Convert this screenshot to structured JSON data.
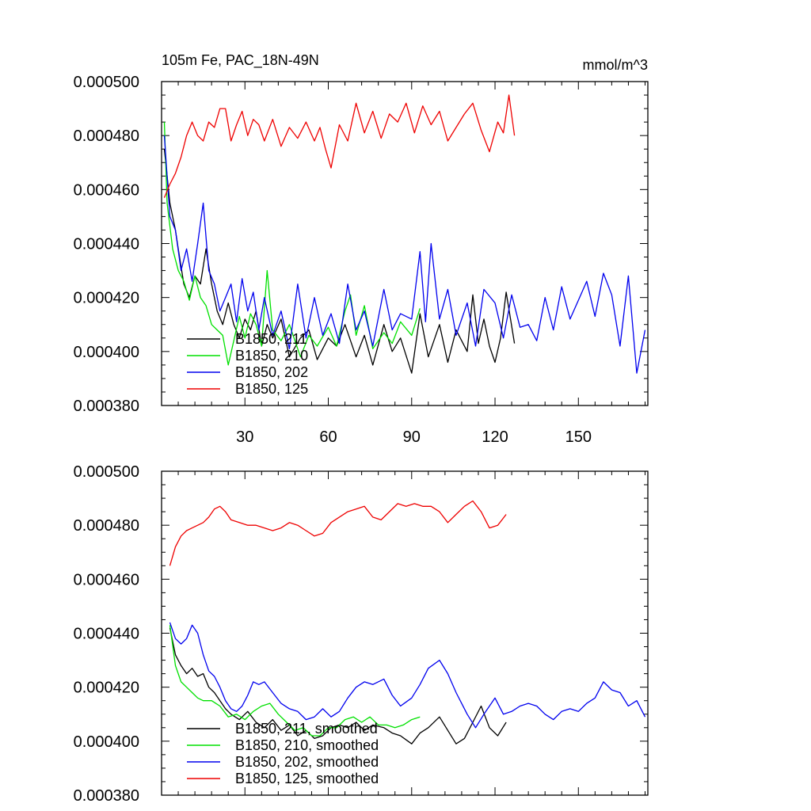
{
  "chart_data": [
    {
      "type": "line",
      "title": "105m Fe, PAC_18N-49N",
      "units": "mmol/m^3",
      "xlim": [
        0,
        175
      ],
      "ylim": [
        0.00038,
        0.0005
      ],
      "xticks": [
        30,
        60,
        90,
        120,
        150
      ],
      "xtick_labels": [
        "30",
        "60",
        "90",
        "120",
        "150"
      ],
      "yticks": [
        0.00038,
        0.0004,
        0.00042,
        0.00044,
        0.00046,
        0.00048,
        0.0005
      ],
      "ytick_labels": [
        "0.000380",
        "0.000400",
        "0.000420",
        "0.000440",
        "0.000460",
        "0.000480",
        "0.000500"
      ],
      "legend_position": "lower-left",
      "series": [
        {
          "name": "B1850, 211",
          "color": "#000000",
          "x": [
            1,
            3,
            5,
            6,
            8,
            10,
            12,
            14,
            16,
            18,
            20,
            22,
            24,
            26,
            28,
            30,
            32,
            34,
            36,
            38,
            40,
            43,
            46,
            50,
            53,
            56,
            60,
            63,
            66,
            70,
            73,
            76,
            80,
            83,
            86,
            90,
            93,
            96,
            100,
            103,
            106,
            110,
            112,
            114,
            116,
            118,
            120,
            122,
            124,
            127
          ],
          "y": [
            0.000475,
            0.000455,
            0.000445,
            0.000438,
            0.000425,
            0.00042,
            0.000428,
            0.000425,
            0.000438,
            0.000425,
            0.000415,
            0.00041,
            0.000418,
            0.00041,
            0.000405,
            0.000412,
            0.000408,
            0.000415,
            0.000402,
            0.00041,
            0.000405,
            0.000412,
            0.000398,
            0.000405,
            0.000408,
            0.000397,
            0.000405,
            0.000402,
            0.00041,
            0.000398,
            0.000406,
            0.000395,
            0.00041,
            0.0004,
            0.000405,
            0.000392,
            0.000414,
            0.000398,
            0.00041,
            0.000396,
            0.000408,
            0.0004,
            0.000421,
            0.000403,
            0.000412,
            0.000402,
            0.000396,
            0.000405,
            0.000422,
            0.000403
          ]
        },
        {
          "name": "B1850, 210",
          "color": "#00e000",
          "x": [
            1,
            2,
            4,
            6,
            8,
            10,
            12,
            14,
            16,
            18,
            20,
            22,
            24,
            26,
            28,
            30,
            32,
            34,
            36,
            38,
            40,
            43,
            46,
            50,
            53,
            56,
            60,
            63,
            66,
            68,
            70,
            73,
            76,
            80,
            83,
            86,
            90,
            93
          ],
          "y": [
            0.000485,
            0.000455,
            0.000438,
            0.00043,
            0.000426,
            0.000419,
            0.000428,
            0.00042,
            0.000417,
            0.00041,
            0.000408,
            0.000406,
            0.000395,
            0.000404,
            0.000413,
            0.000405,
            0.000414,
            0.00041,
            0.000402,
            0.00043,
            0.000408,
            0.000404,
            0.00041,
            0.000398,
            0.000406,
            0.000402,
            0.000409,
            0.000402,
            0.000415,
            0.000421,
            0.000406,
            0.000417,
            0.000401,
            0.000407,
            0.000403,
            0.000411,
            0.000406,
            0.000416
          ]
        },
        {
          "name": "B1850, 202",
          "color": "#0000ee",
          "x": [
            1,
            3,
            5,
            7,
            9,
            11,
            13,
            15,
            17,
            19,
            21,
            23,
            25,
            27,
            29,
            31,
            33,
            35,
            37,
            40,
            43,
            46,
            49,
            52,
            55,
            58,
            61,
            64,
            67,
            70,
            73,
            76,
            80,
            83,
            86,
            90,
            93,
            95,
            97,
            100,
            103,
            106,
            110,
            113,
            116,
            120,
            123,
            126,
            129,
            132,
            135,
            138,
            141,
            144,
            147,
            150,
            153,
            156,
            159,
            162,
            165,
            168,
            171,
            174
          ],
          "y": [
            0.00048,
            0.00045,
            0.000445,
            0.00043,
            0.000438,
            0.000426,
            0.00044,
            0.000455,
            0.00043,
            0.000425,
            0.000415,
            0.00042,
            0.000425,
            0.000411,
            0.000427,
            0.000415,
            0.000422,
            0.000408,
            0.00042,
            0.000406,
            0.000415,
            0.000401,
            0.000425,
            0.000405,
            0.00042,
            0.000406,
            0.000414,
            0.000403,
            0.000425,
            0.000408,
            0.000415,
            0.000402,
            0.000423,
            0.000408,
            0.000414,
            0.000412,
            0.000437,
            0.000411,
            0.00044,
            0.000412,
            0.000423,
            0.000406,
            0.000418,
            0.000402,
            0.000423,
            0.000418,
            0.000405,
            0.000421,
            0.000409,
            0.00041,
            0.000404,
            0.00042,
            0.000408,
            0.000424,
            0.000412,
            0.000419,
            0.000426,
            0.000413,
            0.000429,
            0.000421,
            0.000402,
            0.000428,
            0.000392,
            0.000408
          ]
        },
        {
          "name": "B1850, 125",
          "color": "#ee0000",
          "x": [
            1,
            3,
            5,
            7,
            9,
            11,
            13,
            15,
            17,
            19,
            21,
            23,
            25,
            27,
            29,
            31,
            33,
            35,
            37,
            40,
            43,
            46,
            49,
            52,
            55,
            57,
            59,
            61,
            64,
            67,
            70,
            73,
            76,
            79,
            82,
            85,
            88,
            91,
            94,
            97,
            100,
            103,
            106,
            109,
            112,
            115,
            118,
            121,
            123,
            125,
            127
          ],
          "y": [
            0.000457,
            0.000462,
            0.000466,
            0.000472,
            0.00048,
            0.000485,
            0.00048,
            0.000478,
            0.000485,
            0.000483,
            0.00049,
            0.00049,
            0.000478,
            0.000484,
            0.000489,
            0.00048,
            0.000486,
            0.000484,
            0.000478,
            0.000486,
            0.000476,
            0.000483,
            0.000479,
            0.000485,
            0.000478,
            0.000483,
            0.000475,
            0.000468,
            0.000484,
            0.000478,
            0.000492,
            0.000481,
            0.000489,
            0.000479,
            0.000488,
            0.000485,
            0.000492,
            0.000481,
            0.000491,
            0.000484,
            0.000489,
            0.000478,
            0.000483,
            0.000488,
            0.000492,
            0.000482,
            0.000474,
            0.000485,
            0.000481,
            0.000495,
            0.00048
          ]
        }
      ]
    },
    {
      "type": "line",
      "title": "",
      "units": "",
      "xlim": [
        0,
        175
      ],
      "ylim": [
        0.00038,
        0.0005
      ],
      "xticks": [
        30,
        60,
        90,
        120,
        150
      ],
      "xtick_labels": [],
      "yticks": [
        0.00038,
        0.0004,
        0.00042,
        0.00044,
        0.00046,
        0.00048,
        0.0005
      ],
      "ytick_labels": [
        "0.000380",
        "0.000400",
        "0.000420",
        "0.000440",
        "0.000460",
        "0.000480",
        "0.000500"
      ],
      "legend_position": "lower-left",
      "series": [
        {
          "name": "B1850, 211, smoothed",
          "color": "#000000",
          "x": [
            3,
            5,
            7,
            9,
            11,
            13,
            15,
            17,
            19,
            21,
            23,
            25,
            28,
            31,
            34,
            37,
            40,
            43,
            46,
            49,
            52,
            55,
            58,
            61,
            64,
            67,
            70,
            73,
            76,
            80,
            83,
            86,
            90,
            93,
            96,
            100,
            103,
            106,
            109,
            112,
            115,
            118,
            121,
            124
          ],
          "y": [
            0.000442,
            0.000432,
            0.000428,
            0.000425,
            0.000427,
            0.000424,
            0.000425,
            0.00042,
            0.000418,
            0.000415,
            0.000412,
            0.00041,
            0.000408,
            0.000411,
            0.000407,
            0.000405,
            0.000408,
            0.000404,
            0.000406,
            0.000402,
            0.000404,
            0.000401,
            0.000402,
            0.000405,
            0.000406,
            0.000405,
            0.000407,
            0.000404,
            0.000406,
            0.000405,
            0.000403,
            0.000402,
            0.000399,
            0.000403,
            0.000405,
            0.000409,
            0.000404,
            0.000399,
            0.000401,
            0.000407,
            0.000413,
            0.000405,
            0.000402,
            0.000407
          ]
        },
        {
          "name": "B1850, 210, smoothed",
          "color": "#00e000",
          "x": [
            3,
            5,
            7,
            9,
            11,
            13,
            15,
            18,
            21,
            24,
            27,
            30,
            33,
            36,
            39,
            42,
            45,
            48,
            51,
            54,
            57,
            60,
            63,
            66,
            69,
            72,
            75,
            78,
            81,
            84,
            87,
            90,
            93
          ],
          "y": [
            0.000443,
            0.000428,
            0.000422,
            0.00042,
            0.000418,
            0.000416,
            0.000415,
            0.000415,
            0.000413,
            0.000409,
            0.00041,
            0.000408,
            0.000411,
            0.000413,
            0.000414,
            0.00041,
            0.000407,
            0.000404,
            0.000405,
            0.000402,
            0.000402,
            0.000405,
            0.000405,
            0.000408,
            0.000409,
            0.000407,
            0.000409,
            0.000406,
            0.000406,
            0.000405,
            0.000406,
            0.000408,
            0.000409
          ]
        },
        {
          "name": "B1850, 202, smoothed",
          "color": "#0000ee",
          "x": [
            3,
            5,
            7,
            9,
            11,
            13,
            15,
            17,
            19,
            21,
            23,
            25,
            27,
            29,
            31,
            33,
            35,
            37,
            40,
            43,
            46,
            49,
            52,
            55,
            58,
            61,
            64,
            67,
            70,
            73,
            76,
            80,
            83,
            86,
            90,
            93,
            96,
            100,
            103,
            106,
            110,
            113,
            116,
            120,
            123,
            126,
            129,
            132,
            135,
            138,
            141,
            144,
            147,
            150,
            153,
            156,
            159,
            162,
            165,
            168,
            171,
            174
          ],
          "y": [
            0.000444,
            0.000438,
            0.000436,
            0.000438,
            0.000443,
            0.00044,
            0.000432,
            0.000426,
            0.000424,
            0.00042,
            0.000415,
            0.000412,
            0.000411,
            0.000413,
            0.000417,
            0.000422,
            0.000421,
            0.000422,
            0.000418,
            0.000414,
            0.000412,
            0.000411,
            0.000408,
            0.000409,
            0.000412,
            0.000409,
            0.000411,
            0.000416,
            0.00042,
            0.000422,
            0.000421,
            0.000423,
            0.000417,
            0.000413,
            0.000416,
            0.000421,
            0.000427,
            0.00043,
            0.000425,
            0.000418,
            0.00041,
            0.000405,
            0.00041,
            0.000416,
            0.00041,
            0.000411,
            0.000413,
            0.000414,
            0.000413,
            0.00041,
            0.000408,
            0.000411,
            0.000412,
            0.000411,
            0.000414,
            0.000416,
            0.000422,
            0.000419,
            0.000418,
            0.000413,
            0.000415,
            0.000409
          ]
        },
        {
          "name": "B1850, 125, smoothed",
          "color": "#ee0000",
          "x": [
            3,
            5,
            7,
            9,
            11,
            13,
            15,
            17,
            19,
            21,
            23,
            25,
            28,
            31,
            34,
            37,
            40,
            43,
            46,
            49,
            52,
            55,
            58,
            61,
            64,
            67,
            70,
            73,
            76,
            79,
            82,
            85,
            88,
            91,
            94,
            97,
            100,
            103,
            106,
            109,
            112,
            115,
            118,
            121,
            124
          ],
          "y": [
            0.000465,
            0.000472,
            0.000476,
            0.000478,
            0.000479,
            0.00048,
            0.000481,
            0.000483,
            0.000486,
            0.000487,
            0.000485,
            0.000482,
            0.000481,
            0.00048,
            0.00048,
            0.000479,
            0.000478,
            0.000479,
            0.000481,
            0.00048,
            0.000478,
            0.000476,
            0.000477,
            0.000481,
            0.000483,
            0.000485,
            0.000486,
            0.000487,
            0.000483,
            0.000482,
            0.000485,
            0.000488,
            0.000487,
            0.000488,
            0.000487,
            0.000487,
            0.000485,
            0.000481,
            0.000484,
            0.000487,
            0.000489,
            0.000485,
            0.000479,
            0.00048,
            0.000484
          ]
        }
      ]
    }
  ]
}
